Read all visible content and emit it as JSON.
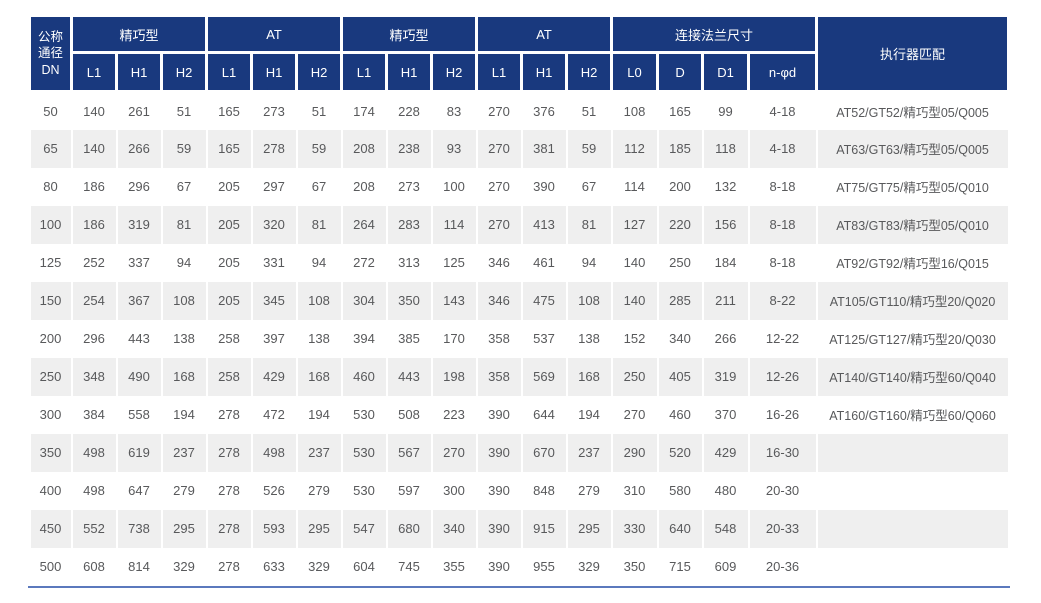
{
  "theme": {
    "header_bg": "#19397e",
    "header_text": "#ffffff",
    "stripe_bg": "#efefef",
    "row_bg": "#ffffff",
    "cell_text": "#58595b",
    "bottom_line": "#5b79bd",
    "page_bg": "#ffffff"
  },
  "table": {
    "corner_header": "公称\n通径\nDN",
    "groups": [
      {
        "label": "精巧型",
        "colspan": 3
      },
      {
        "label": "AT",
        "colspan": 3
      },
      {
        "label": "精巧型",
        "colspan": 3
      },
      {
        "label": "AT",
        "colspan": 3
      },
      {
        "label": "连接法兰尺寸",
        "colspan": 4
      }
    ],
    "actuator_header": "执行器匹配",
    "subheaders": [
      "L1",
      "H1",
      "H2",
      "L1",
      "H1",
      "H2",
      "L1",
      "H1",
      "H2",
      "L1",
      "H1",
      "H2",
      "L0",
      "D",
      "D1",
      "n-φd"
    ],
    "rows": [
      {
        "dn": "50",
        "values": [
          "140",
          "261",
          "51",
          "165",
          "273",
          "51",
          "174",
          "228",
          "83",
          "270",
          "376",
          "51",
          "108",
          "165",
          "99",
          "4-18"
        ],
        "actuator": "AT52/GT52/精巧型05/Q005"
      },
      {
        "dn": "65",
        "values": [
          "140",
          "266",
          "59",
          "165",
          "278",
          "59",
          "208",
          "238",
          "93",
          "270",
          "381",
          "59",
          "112",
          "185",
          "118",
          "4-18"
        ],
        "actuator": "AT63/GT63/精巧型05/Q005"
      },
      {
        "dn": "80",
        "values": [
          "186",
          "296",
          "67",
          "205",
          "297",
          "67",
          "208",
          "273",
          "100",
          "270",
          "390",
          "67",
          "114",
          "200",
          "132",
          "8-18"
        ],
        "actuator": "AT75/GT75/精巧型05/Q010"
      },
      {
        "dn": "100",
        "values": [
          "186",
          "319",
          "81",
          "205",
          "320",
          "81",
          "264",
          "283",
          "114",
          "270",
          "413",
          "81",
          "127",
          "220",
          "156",
          "8-18"
        ],
        "actuator": "AT83/GT83/精巧型05/Q010"
      },
      {
        "dn": "125",
        "values": [
          "252",
          "337",
          "94",
          "205",
          "331",
          "94",
          "272",
          "313",
          "125",
          "346",
          "461",
          "94",
          "140",
          "250",
          "184",
          "8-18"
        ],
        "actuator": "AT92/GT92/精巧型16/Q015"
      },
      {
        "dn": "150",
        "values": [
          "254",
          "367",
          "108",
          "205",
          "345",
          "108",
          "304",
          "350",
          "143",
          "346",
          "475",
          "108",
          "140",
          "285",
          "211",
          "8-22"
        ],
        "actuator": "AT105/GT110/精巧型20/Q020"
      },
      {
        "dn": "200",
        "values": [
          "296",
          "443",
          "138",
          "258",
          "397",
          "138",
          "394",
          "385",
          "170",
          "358",
          "537",
          "138",
          "152",
          "340",
          "266",
          "12-22"
        ],
        "actuator": "AT125/GT127/精巧型20/Q030"
      },
      {
        "dn": "250",
        "values": [
          "348",
          "490",
          "168",
          "258",
          "429",
          "168",
          "460",
          "443",
          "198",
          "358",
          "569",
          "168",
          "250",
          "405",
          "319",
          "12-26"
        ],
        "actuator": "AT140/GT140/精巧型60/Q040"
      },
      {
        "dn": "300",
        "values": [
          "384",
          "558",
          "194",
          "278",
          "472",
          "194",
          "530",
          "508",
          "223",
          "390",
          "644",
          "194",
          "270",
          "460",
          "370",
          "16-26"
        ],
        "actuator": "AT160/GT160/精巧型60/Q060"
      },
      {
        "dn": "350",
        "values": [
          "498",
          "619",
          "237",
          "278",
          "498",
          "237",
          "530",
          "567",
          "270",
          "390",
          "670",
          "237",
          "290",
          "520",
          "429",
          "16-30"
        ],
        "actuator": ""
      },
      {
        "dn": "400",
        "values": [
          "498",
          "647",
          "279",
          "278",
          "526",
          "279",
          "530",
          "597",
          "300",
          "390",
          "848",
          "279",
          "310",
          "580",
          "480",
          "20-30"
        ],
        "actuator": ""
      },
      {
        "dn": "450",
        "values": [
          "552",
          "738",
          "295",
          "278",
          "593",
          "295",
          "547",
          "680",
          "340",
          "390",
          "915",
          "295",
          "330",
          "640",
          "548",
          "20-33"
        ],
        "actuator": ""
      },
      {
        "dn": "500",
        "values": [
          "608",
          "814",
          "329",
          "278",
          "633",
          "329",
          "604",
          "745",
          "355",
          "390",
          "955",
          "329",
          "350",
          "715",
          "609",
          "20-36"
        ],
        "actuator": ""
      }
    ]
  }
}
